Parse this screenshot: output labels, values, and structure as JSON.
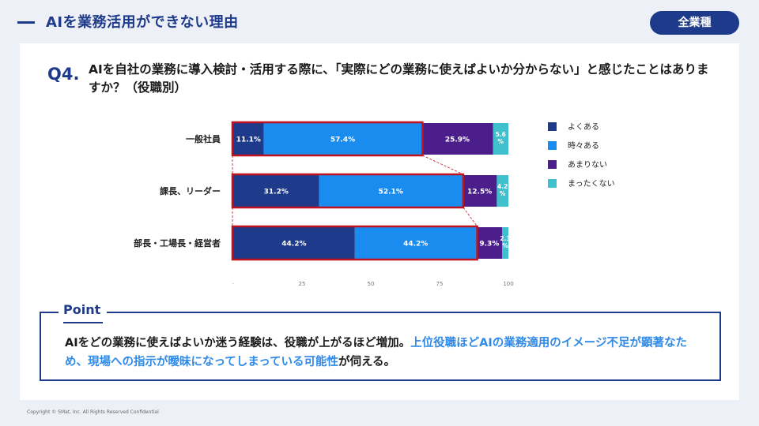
{
  "header": {
    "title": "AIを業務活用ができない理由",
    "badge": "全業種"
  },
  "question": {
    "number": "Q4.",
    "text": "AIを自社の業務に導入検討・活用する際に、「実際にどの業務に使えばよいか分からない」と感じたことはありますか？（役職別）"
  },
  "colors": {
    "navy": "#1e3a8a",
    "blue": "#1a8cf0",
    "purple": "#4b1e8c",
    "teal": "#40c0cc",
    "highlight": "#c1121f"
  },
  "chart_data": {
    "type": "bar",
    "orientation": "horizontal-stacked",
    "categories": [
      "一般社員",
      "課長、リーダー",
      "部長・工場長・経営者"
    ],
    "series": [
      {
        "name": "よくある",
        "values": [
          11.1,
          31.2,
          44.2
        ],
        "labels": [
          "11.1%",
          "31.2%",
          "44.2%"
        ]
      },
      {
        "name": "時々ある",
        "values": [
          57.4,
          52.1,
          44.2
        ],
        "labels": [
          "57.4%",
          "52.1%",
          "44.2%"
        ]
      },
      {
        "name": "あまりない",
        "values": [
          25.9,
          12.5,
          9.3
        ],
        "labels": [
          "25.9%",
          "12.5%",
          "9.3%"
        ]
      },
      {
        "name": "まったくない",
        "values": [
          5.6,
          4.2,
          2.3
        ],
        "labels": [
          "5.6 %",
          "4.2 %",
          "2.3 %"
        ]
      }
    ],
    "xlim": [
      0,
      100
    ],
    "xticks": [
      0,
      25,
      50,
      75,
      100
    ],
    "legend_position": "right"
  },
  "point": {
    "title": "Point",
    "text_plain": "AIをどの業務に使えばよいか迷う経験は、役職が上がるほど増加。",
    "text_highlight": "上位役職ほどAIの業務適用のイメージ不足が顕著なため、現場への指示が曖昧になってしまっている可能性",
    "text_end": "が伺える。"
  },
  "footer": {
    "copyright": "Copyright © SMat, Inc. All Rights Reserved Confidential"
  }
}
